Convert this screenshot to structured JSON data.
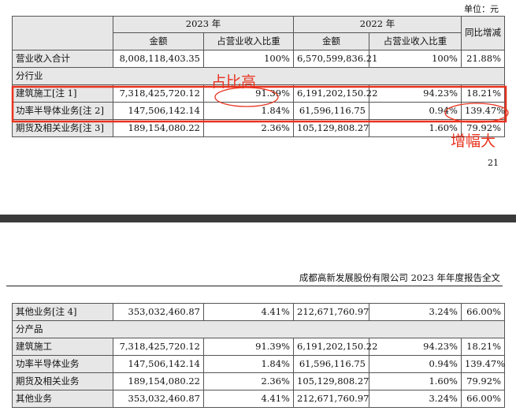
{
  "page_top": {
    "unit_label": "单位：元",
    "page_number": "21"
  },
  "page_bottom": {
    "running_header": "成都高新发展股份有限公司 2023 年年度报告全文"
  },
  "table": {
    "header": {
      "year_2023": "2023 年",
      "year_2022": "2022 年",
      "amount": "金额",
      "share": "占营业收入比重",
      "yoy": "同比增减"
    },
    "total_row": {
      "label": "营业收入合计",
      "amount_2023": "8,008,118,403.35",
      "share_2023": "100%",
      "amount_2022": "6,570,599,836.21",
      "share_2022": "100%",
      "yoy": "21.88%"
    },
    "section_industry": "分行业",
    "industry_rows": [
      {
        "label": "建筑施工[注 1]",
        "amount_2023": "7,318,425,720.12",
        "share_2023": "91.39%",
        "amount_2022": "6,191,202,150.22",
        "share_2022": "94.23%",
        "yoy": "18.21%"
      },
      {
        "label": "功率半导体业务[注 2]",
        "amount_2023": "147,506,142.14",
        "share_2023": "1.84%",
        "amount_2022": "61,596,116.75",
        "share_2022": "0.94%",
        "yoy": "139.47%"
      },
      {
        "label": "期货及相关业务[注 3]",
        "amount_2023": "189,154,080.22",
        "share_2023": "2.36%",
        "amount_2022": "105,129,808.27",
        "share_2022": "1.60%",
        "yoy": "79.92%"
      }
    ],
    "continued_rows": [
      {
        "label": "其他业务[注 4]",
        "amount_2023": "353,032,460.87",
        "share_2023": "4.41%",
        "amount_2022": "212,671,760.97",
        "share_2022": "3.24%",
        "yoy": "66.00%"
      }
    ],
    "section_product": "分产品",
    "product_rows": [
      {
        "label": "建筑施工",
        "amount_2023": "7,318,425,720.12",
        "share_2023": "91.39%",
        "amount_2022": "6,191,202,150.22",
        "share_2022": "94.23%",
        "yoy": "18.21%"
      },
      {
        "label": "功率半导体业务",
        "amount_2023": "147,506,142.14",
        "share_2023": "1.84%",
        "amount_2022": "61,596,116.75",
        "share_2022": "0.94%",
        "yoy": "139.47%"
      },
      {
        "label": "期货及相关业务",
        "amount_2023": "189,154,080.22",
        "share_2023": "2.36%",
        "amount_2022": "105,129,808.27",
        "share_2022": "1.60%",
        "yoy": "79.92%"
      },
      {
        "label": "其他业务",
        "amount_2023": "353,032,460.87",
        "share_2023": "4.41%",
        "amount_2022": "212,671,760.97",
        "share_2022": "3.24%",
        "yoy": "66.00%"
      }
    ]
  },
  "annotations": {
    "share_high": "占比高",
    "growth_large": "增幅大",
    "color": "#e8321e"
  }
}
